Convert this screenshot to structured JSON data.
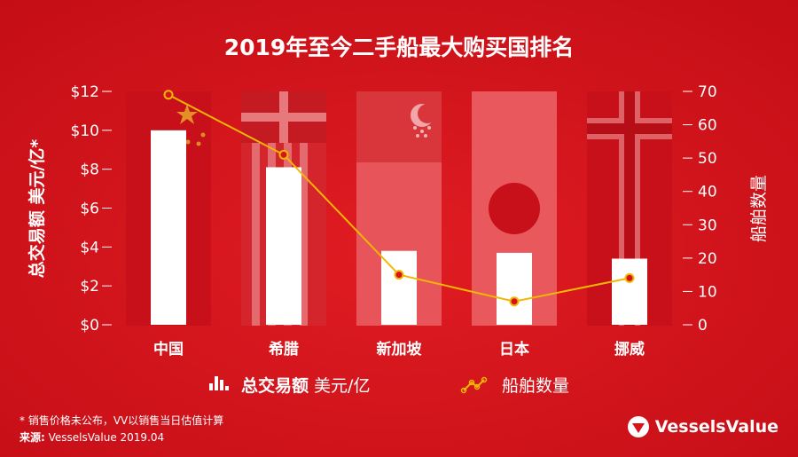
{
  "chart_data": {
    "type": "bar",
    "title": "2019年至今二手船最大购买国排名",
    "categories": [
      "中国",
      "希腊",
      "新加坡",
      "日本",
      "挪威"
    ],
    "series": [
      {
        "name": "总交易额 美元/亿",
        "type": "bar",
        "axis": "left",
        "values": [
          10.0,
          8.1,
          3.8,
          3.7,
          3.4
        ]
      },
      {
        "name": "船舶数量",
        "type": "line",
        "axis": "right",
        "values": [
          69,
          51,
          15,
          7,
          14
        ]
      }
    ],
    "ylabel_left": "总交易额 美元/亿*",
    "ylabel_right": "船舶数量",
    "ylim_left": [
      0,
      12
    ],
    "ylim_right": [
      0,
      70
    ],
    "yticks_left": [
      "$0",
      "$2",
      "$4",
      "$6",
      "$8",
      "$10",
      "$12"
    ],
    "yticks_right": [
      "0",
      "10",
      "20",
      "30",
      "40",
      "50",
      "60",
      "70"
    ],
    "grid": false,
    "legend_position": "bottom-center",
    "colors": {
      "background": "#d8121b",
      "bars": "#ffffff",
      "line": "#f2b705",
      "text": "#ffffff"
    }
  },
  "legend": {
    "bar_label_bold": "总交易额",
    "bar_label_rest": " 美元/亿",
    "line_label": "船舶数量"
  },
  "footnote": {
    "note": "* 销售价格未公布，VV以销售当日估值计算",
    "source_label": "来源:",
    "source_text": " VesselsValue 2019.04"
  },
  "logo_text": "VesselsValue",
  "flags": [
    "china-flag-icon",
    "greece-flag-icon",
    "singapore-flag-icon",
    "japan-flag-icon",
    "norway-flag-icon"
  ]
}
